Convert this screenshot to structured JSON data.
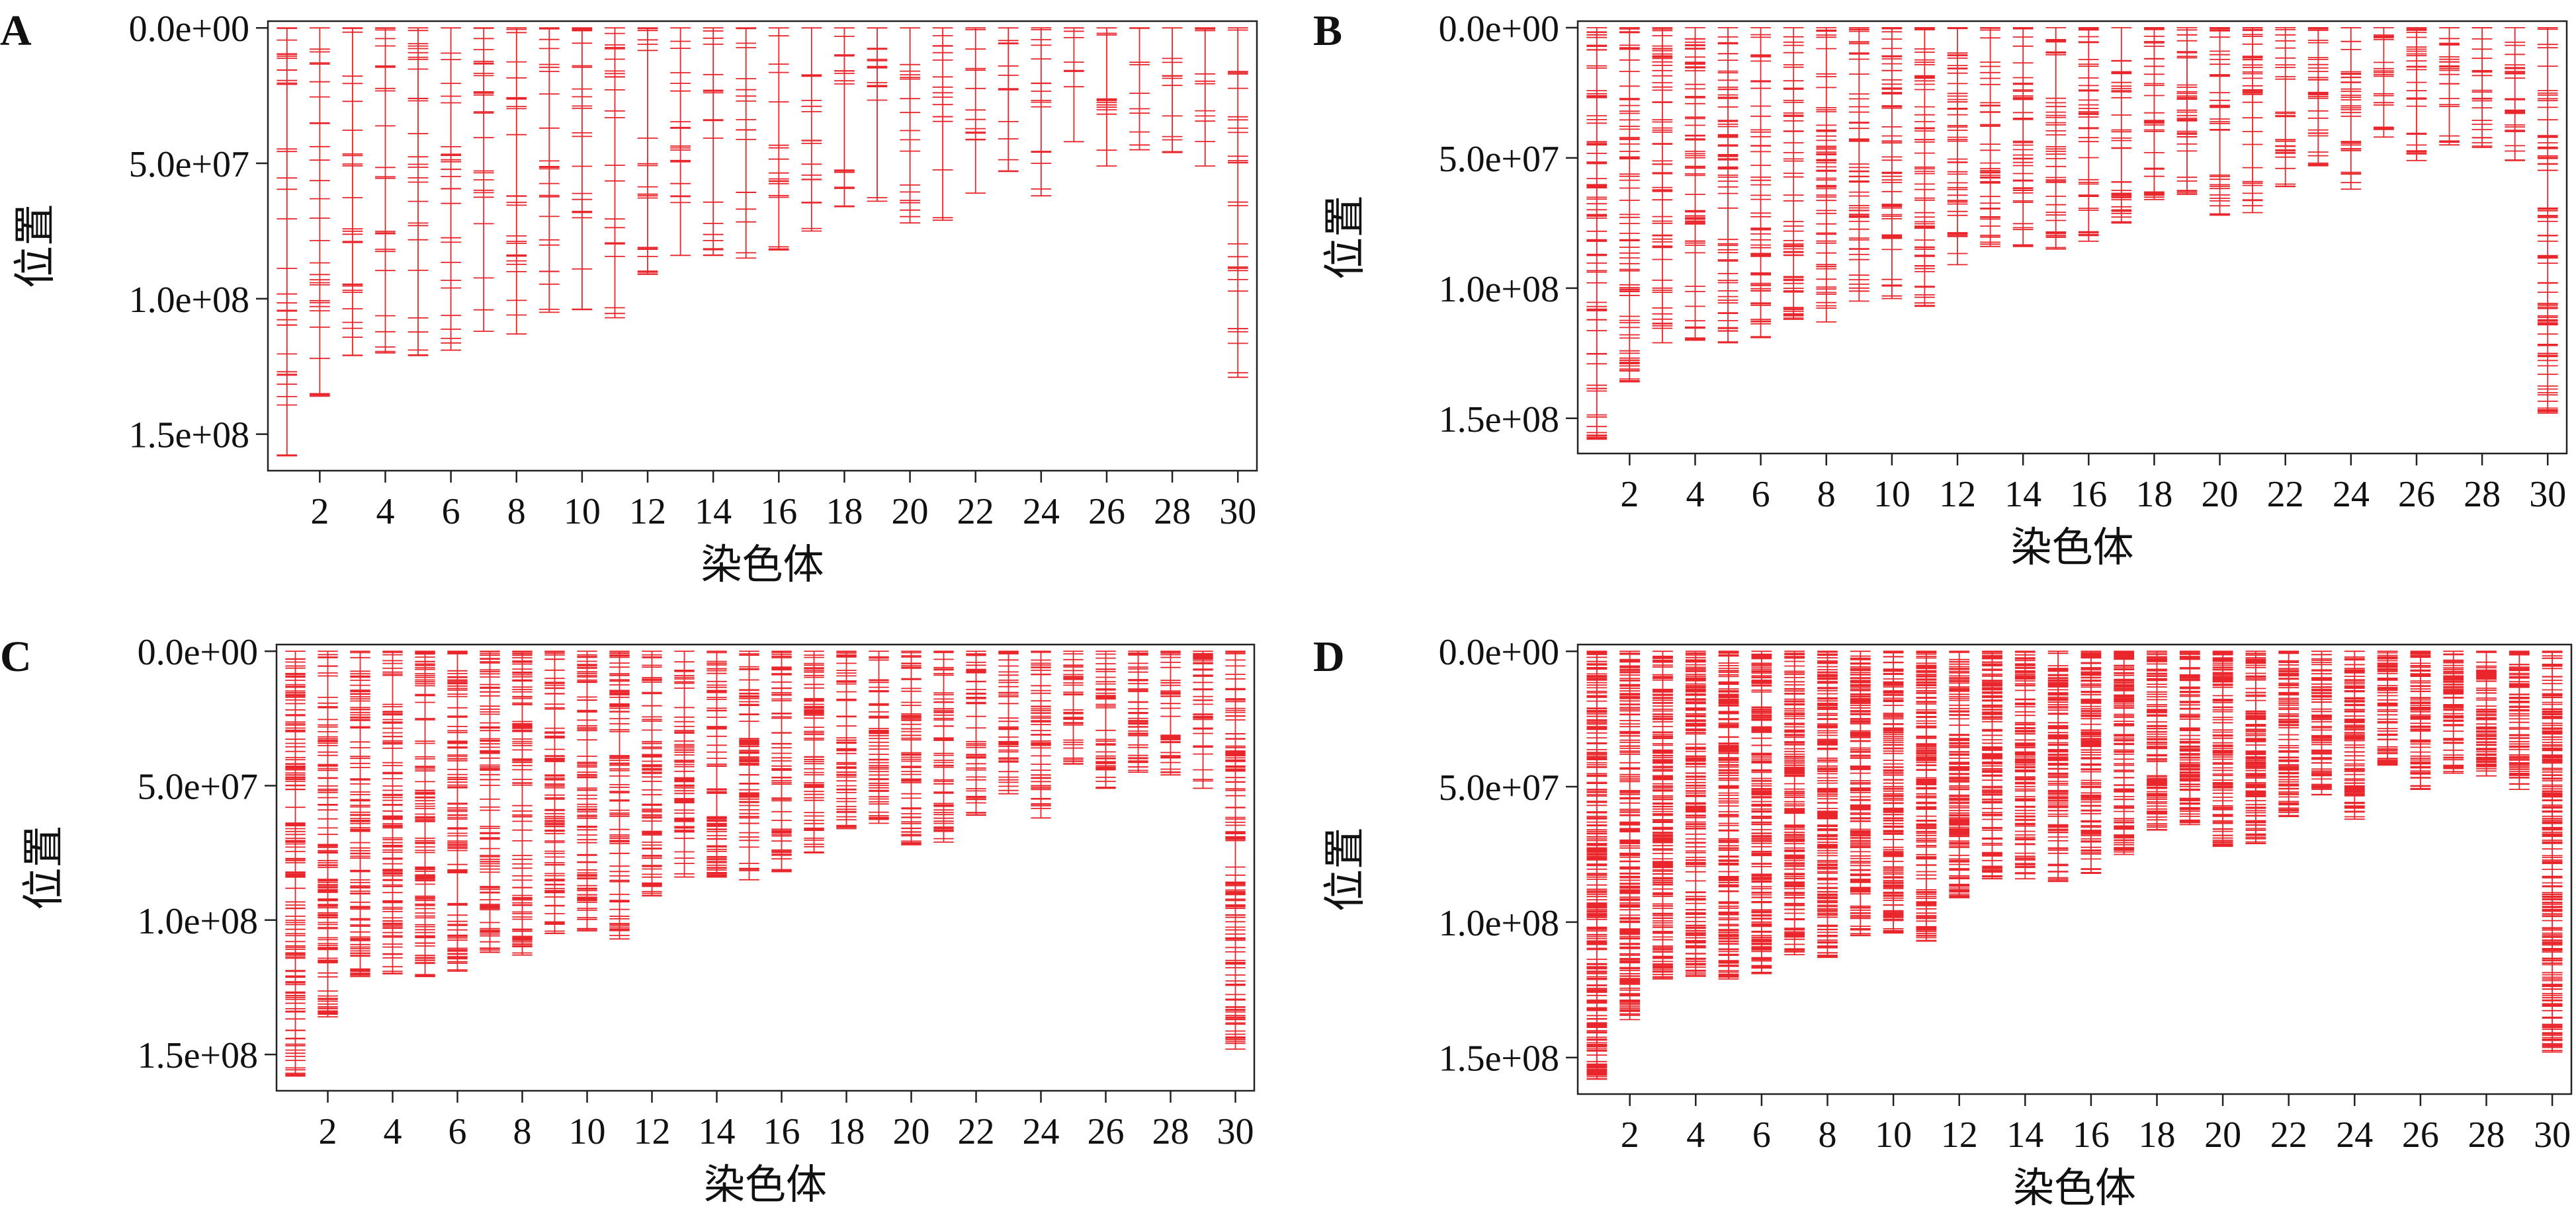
{
  "figure": {
    "marker_color": "#e8262b",
    "axis_color": "#222222"
  },
  "chart_data": [
    {
      "type": "scatter",
      "panel_label": "A",
      "xlabel": "染色体",
      "ylabel": "位置",
      "x_ticks": [
        "2",
        "4",
        "6",
        "8",
        "10",
        "12",
        "14",
        "16",
        "18",
        "20",
        "22",
        "24",
        "26",
        "28",
        "30"
      ],
      "y_ticks": [
        "0.0e+00",
        "5.0e+07",
        "1.0e+08",
        "1.5e+08"
      ],
      "y_tick_values": [
        0,
        50000000,
        100000000,
        150000000
      ],
      "xlim": [
        0.5,
        30.5
      ],
      "ylim": [
        163000000,
        -2000000
      ],
      "y_reversed": true,
      "grid": false,
      "density": 22,
      "chromosome_lengths": [
        158,
        136,
        121,
        120,
        121,
        119,
        112,
        113,
        105,
        104,
        107,
        91,
        84,
        84,
        85,
        82,
        75,
        66,
        64,
        72,
        71,
        61,
        53,
        62,
        42,
        51,
        45,
        46,
        51,
        129
      ]
    },
    {
      "type": "scatter",
      "panel_label": "B",
      "xlabel": "染色体",
      "ylabel": "位置",
      "x_ticks": [
        "2",
        "4",
        "6",
        "8",
        "10",
        "12",
        "14",
        "16",
        "18",
        "20",
        "22",
        "24",
        "26",
        "28",
        "30"
      ],
      "y_ticks": [
        "0.0e+00",
        "5.0e+07",
        "1.5e+08"
      ],
      "y_tick_values": [
        0,
        50000000,
        150000000
      ],
      "extra_tick_labels": [
        {
          "label": "1.0e+08",
          "value": 100000000
        }
      ],
      "xlim": [
        0.5,
        30.5
      ],
      "ylim": [
        163000000,
        -2000000
      ],
      "y_reversed": true,
      "grid": false,
      "density": 55,
      "chromosome_lengths": [
        158,
        136,
        121,
        120,
        121,
        119,
        112,
        113,
        105,
        104,
        107,
        91,
        84,
        84,
        85,
        82,
        75,
        66,
        64,
        72,
        71,
        61,
        53,
        62,
        42,
        51,
        45,
        46,
        51,
        148
      ]
    },
    {
      "type": "scatter",
      "panel_label": "C",
      "xlabel": "染色体",
      "ylabel": "位置",
      "x_ticks": [
        "2",
        "4",
        "6",
        "8",
        "10",
        "12",
        "14",
        "16",
        "18",
        "20",
        "22",
        "24",
        "26",
        "28",
        "30"
      ],
      "y_ticks": [
        "0.0e+00",
        "5.0e+07",
        "1.0e+08",
        "1.5e+08"
      ],
      "y_tick_values": [
        0,
        50000000,
        100000000,
        150000000
      ],
      "xlim": [
        0.5,
        30.5
      ],
      "ylim": [
        163000000,
        -2000000
      ],
      "y_reversed": true,
      "grid": false,
      "density": 95,
      "chromosome_lengths": [
        158,
        136,
        121,
        120,
        121,
        119,
        112,
        113,
        105,
        104,
        107,
        91,
        84,
        84,
        85,
        82,
        75,
        66,
        64,
        72,
        71,
        61,
        53,
        62,
        42,
        51,
        45,
        46,
        51,
        148
      ]
    },
    {
      "type": "scatter",
      "panel_label": "D",
      "xlabel": "染色体",
      "ylabel": "位置",
      "x_ticks": [
        "2",
        "4",
        "6",
        "8",
        "10",
        "12",
        "14",
        "16",
        "18",
        "20",
        "22",
        "24",
        "26",
        "28",
        "30"
      ],
      "y_ticks": [
        "0.0e+00",
        "5.0e+07",
        "1.0e+08",
        "1.5e+08"
      ],
      "y_tick_values": [
        0,
        50000000,
        100000000,
        150000000
      ],
      "xlim": [
        0.5,
        30.5
      ],
      "ylim": [
        163000000,
        -2000000
      ],
      "y_reversed": true,
      "grid": false,
      "density": 180,
      "chromosome_lengths": [
        158,
        136,
        121,
        120,
        121,
        119,
        112,
        113,
        105,
        104,
        107,
        91,
        84,
        84,
        85,
        82,
        75,
        66,
        64,
        72,
        71,
        61,
        53,
        62,
        42,
        51,
        45,
        46,
        51,
        148
      ]
    }
  ]
}
